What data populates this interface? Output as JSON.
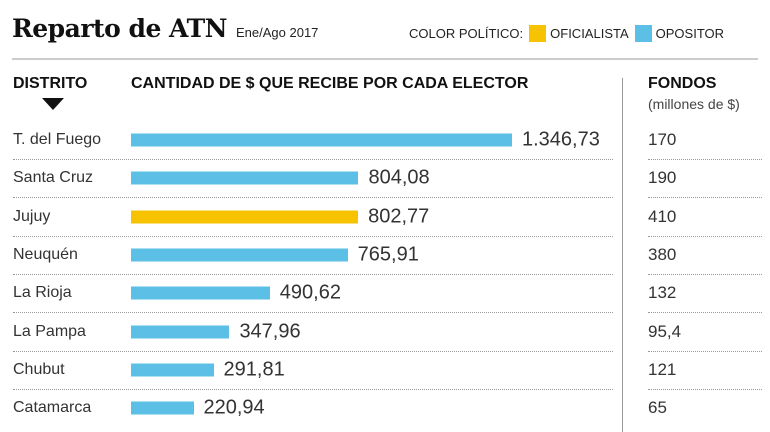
{
  "chart_data": {
    "type": "bar",
    "orientation": "horizontal",
    "title": "Reparto de ATN",
    "subtitle": "Ene/Ago 2017",
    "legend": {
      "title": "COLOR POLÍTICO:",
      "entries": [
        {
          "name": "OFICIALISTA",
          "color": "#f7c200"
        },
        {
          "name": "OPOSITOR",
          "color": "#5bbfe6"
        }
      ],
      "placement": "top-right"
    },
    "headers": {
      "district": "DISTRITO",
      "amount": "CANTIDAD DE $ QUE RECIBE POR CADA ELECTOR",
      "funds": "FONDOS",
      "funds_unit": "(millones de $)"
    },
    "categories": [
      "T. del Fuego",
      "Santa Cruz",
      "Jujuy",
      "Neuquén",
      "La Rioja",
      "La Pampa",
      "Chubut",
      "Catamarca"
    ],
    "values": [
      1346.73,
      804.08,
      802.77,
      765.91,
      490.62,
      347.96,
      291.81,
      220.94
    ],
    "value_labels": [
      "1.346,73",
      "804,08",
      "802,77",
      "765,91",
      "490,62",
      "347,96",
      "291,81",
      "220,94"
    ],
    "political_color": [
      "OPOSITOR",
      "OPOSITOR",
      "OFICIALISTA",
      "OPOSITOR",
      "OPOSITOR",
      "OPOSITOR",
      "OPOSITOR",
      "OPOSITOR"
    ],
    "funds": [
      "170",
      "190",
      "410",
      "380",
      "132",
      "95,4",
      "121",
      "65"
    ],
    "sort": "descending"
  }
}
